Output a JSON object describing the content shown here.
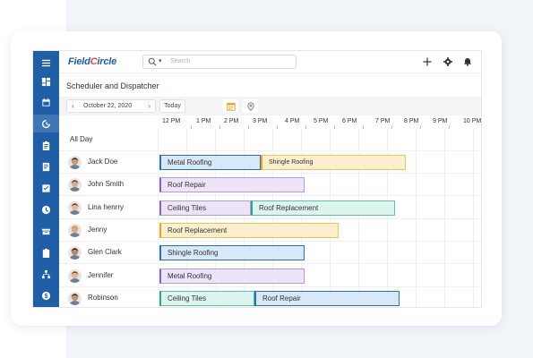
{
  "app": {
    "logo": {
      "part1": "Field",
      "part2": "C",
      "part3": "ircle"
    },
    "search_placeholder": "Search",
    "page_title": "Scheduler and Dispatcher",
    "date": "October 22, 2020",
    "today_label": "Today",
    "prev_glyph": "‹",
    "next_glyph": "›",
    "colors": {
      "brand": "#1f5fa8",
      "accent": "#e8493b",
      "blue": "#2d6fb5",
      "yellow": "#e6a81a",
      "purple": "#8a5fc4",
      "green": "#2aa585"
    }
  },
  "sidebar": {
    "icons": [
      "menu-icon",
      "dashboard-icon",
      "calendar-icon",
      "dispatch-icon",
      "clipboard-icon",
      "invoice-icon",
      "checklist-icon",
      "clock-icon",
      "inventory-icon",
      "tasks-icon",
      "sitemap-icon",
      "dollar-icon"
    ]
  },
  "header_icons": [
    "add-icon",
    "settings-icon",
    "bell-icon",
    "user-avatar-icon"
  ],
  "schedule": {
    "hours": [
      "12 PM",
      "1 PM",
      "2 PM",
      "3 PM",
      "4 PM",
      "5 PM",
      "6 PM",
      "7 PM",
      "8 PM",
      "9 PM",
      "10 PM"
    ],
    "all_day_label": "All Day",
    "rows": [
      {
        "name": "Jack Doe",
        "events": [
          {
            "label": "Metal Roofing",
            "color": "blue"
          },
          {
            "label": "Shingle Roofing",
            "color": "yellow"
          }
        ]
      },
      {
        "name": "John Smith",
        "events": [
          {
            "label": "Roof Repair",
            "color": "purple"
          }
        ]
      },
      {
        "name": "Lina henrry",
        "events": [
          {
            "label": "Ceiling Tiles",
            "color": "purple"
          },
          {
            "label": "Roof Replacement",
            "color": "green"
          }
        ]
      },
      {
        "name": "Jenny",
        "events": [
          {
            "label": "Roof Replacement",
            "color": "yellow"
          }
        ]
      },
      {
        "name": "Glen Clark",
        "events": [
          {
            "label": "Shingle Roofing",
            "color": "blue"
          }
        ]
      },
      {
        "name": "Jennifer",
        "events": [
          {
            "label": "Metal Roofing",
            "color": "purple"
          }
        ]
      },
      {
        "name": "Robinson",
        "events": [
          {
            "label": "Ceiling Tiles",
            "color": "green"
          },
          {
            "label": "Roof Repair",
            "color": "blue"
          }
        ]
      }
    ]
  }
}
